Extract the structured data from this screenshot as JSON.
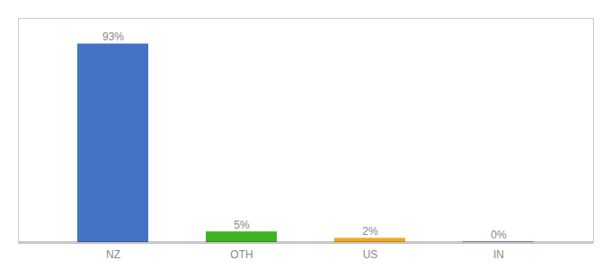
{
  "chart_data": {
    "type": "bar",
    "categories": [
      "NZ",
      "OTH",
      "US",
      "IN"
    ],
    "values": [
      93,
      5,
      2,
      0.3
    ],
    "value_labels": [
      "93%",
      "5%",
      "2%",
      "0%"
    ],
    "colors": [
      "#4472C4",
      "#3CB521",
      "#F5A623",
      "#4472C4"
    ],
    "ylim": [
      0,
      105
    ],
    "grid": false,
    "data_labels": true,
    "tick_labels": "x"
  }
}
